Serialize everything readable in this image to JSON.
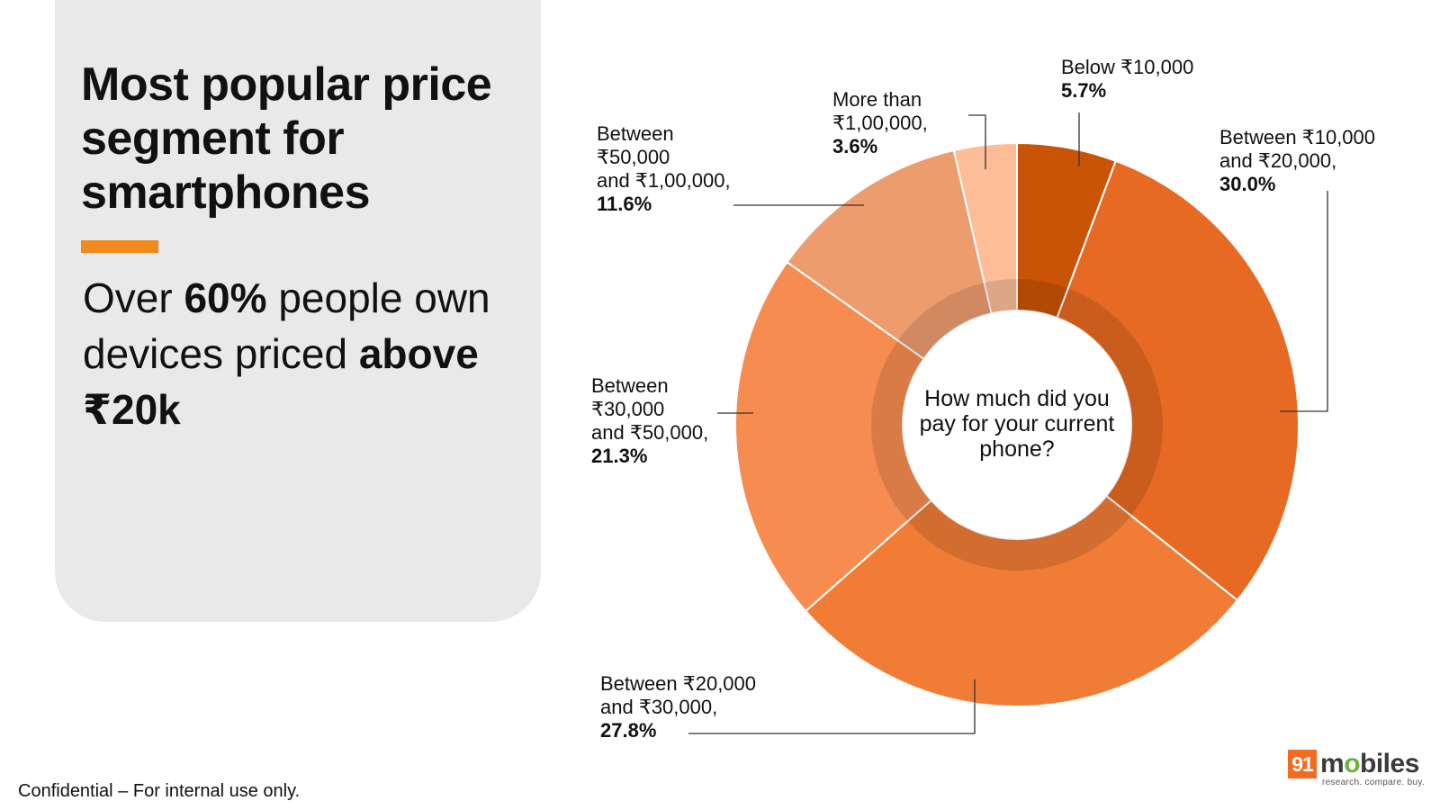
{
  "left_panel": {
    "title": "Most popular price segment for smartphones",
    "subtitle_pre": "Over ",
    "subtitle_bold": "60%",
    "subtitle_mid": " people own devices priced ",
    "subtitle_end_bold": "above ₹20k"
  },
  "footer": {
    "text": "Confidential – For internal use only."
  },
  "logo": {
    "number": "91",
    "word_pre": "m",
    "word_o": "o",
    "word_post": "biles",
    "tagline": "research. compare. buy."
  },
  "colors": {
    "accent": "#f08a1c",
    "panel": "#e9e9e9"
  },
  "chart_data": {
    "type": "donut",
    "center_text": "How much did you pay for your current phone?",
    "slices": [
      {
        "label": "Below ₹10,000",
        "value": 5.7,
        "pct_text": "5.7%",
        "color": "#c95405"
      },
      {
        "label": "Between ₹10,000\nand ₹20,000,",
        "value": 30.0,
        "pct_text": "30.0%",
        "color": "#e66a23"
      },
      {
        "label": "Between ₹20,000\nand ₹30,000,",
        "value": 27.8,
        "pct_text": "27.8%",
        "color": "#f07c36"
      },
      {
        "label": "Between\n₹30,000\nand ₹50,000,",
        "value": 21.3,
        "pct_text": "21.3%",
        "color": "#f68c50"
      },
      {
        "label": "Between\n₹50,000\nand ₹1,00,000,",
        "value": 11.6,
        "pct_text": "11.6%",
        "color": "#ed9c6e"
      },
      {
        "label": "More than\n₹1,00,000,",
        "value": 3.6,
        "pct_text": "3.6%",
        "color": "#fcbd97"
      }
    ]
  }
}
